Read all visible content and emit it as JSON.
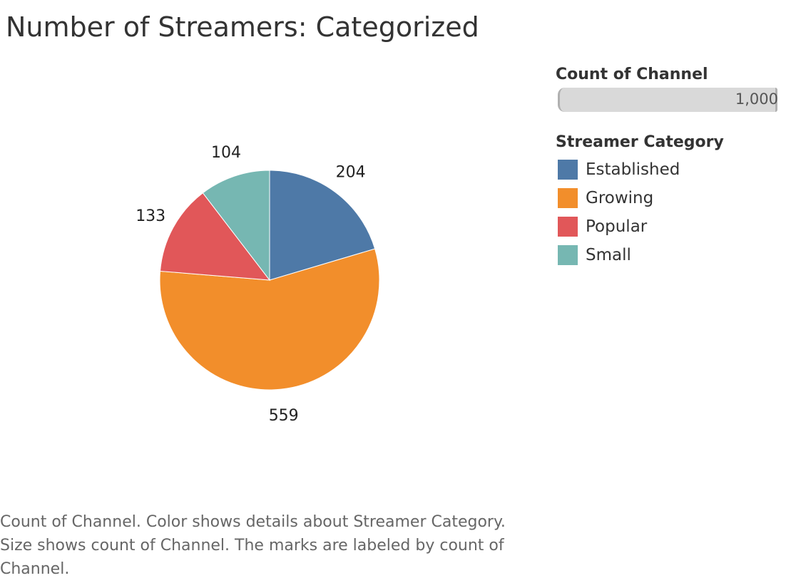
{
  "chart_data": {
    "type": "pie",
    "title": "Number of Streamers: Categorized",
    "categories": [
      "Established",
      "Growing",
      "Popular",
      "Small"
    ],
    "values": [
      204,
      559,
      133,
      104
    ],
    "colors": [
      "#4e79a7",
      "#f28e2b",
      "#e15759",
      "#76b7b2"
    ],
    "data_labels": [
      "204",
      "559",
      "133",
      "104"
    ],
    "legend_placement": "right"
  },
  "legend": {
    "size_heading": "Count of Channel",
    "size_value": "1,000",
    "color_heading": "Streamer Category",
    "items": [
      {
        "label": "Established",
        "color": "#4e79a7"
      },
      {
        "label": "Growing",
        "color": "#f28e2b"
      },
      {
        "label": "Popular",
        "color": "#e15759"
      },
      {
        "label": "Small",
        "color": "#76b7b2"
      }
    ]
  },
  "caption": {
    "text": "Count of Channel.  Color shows details about Streamer Category.  Size shows count of Channel.  The marks are labeled by count of Channel."
  }
}
